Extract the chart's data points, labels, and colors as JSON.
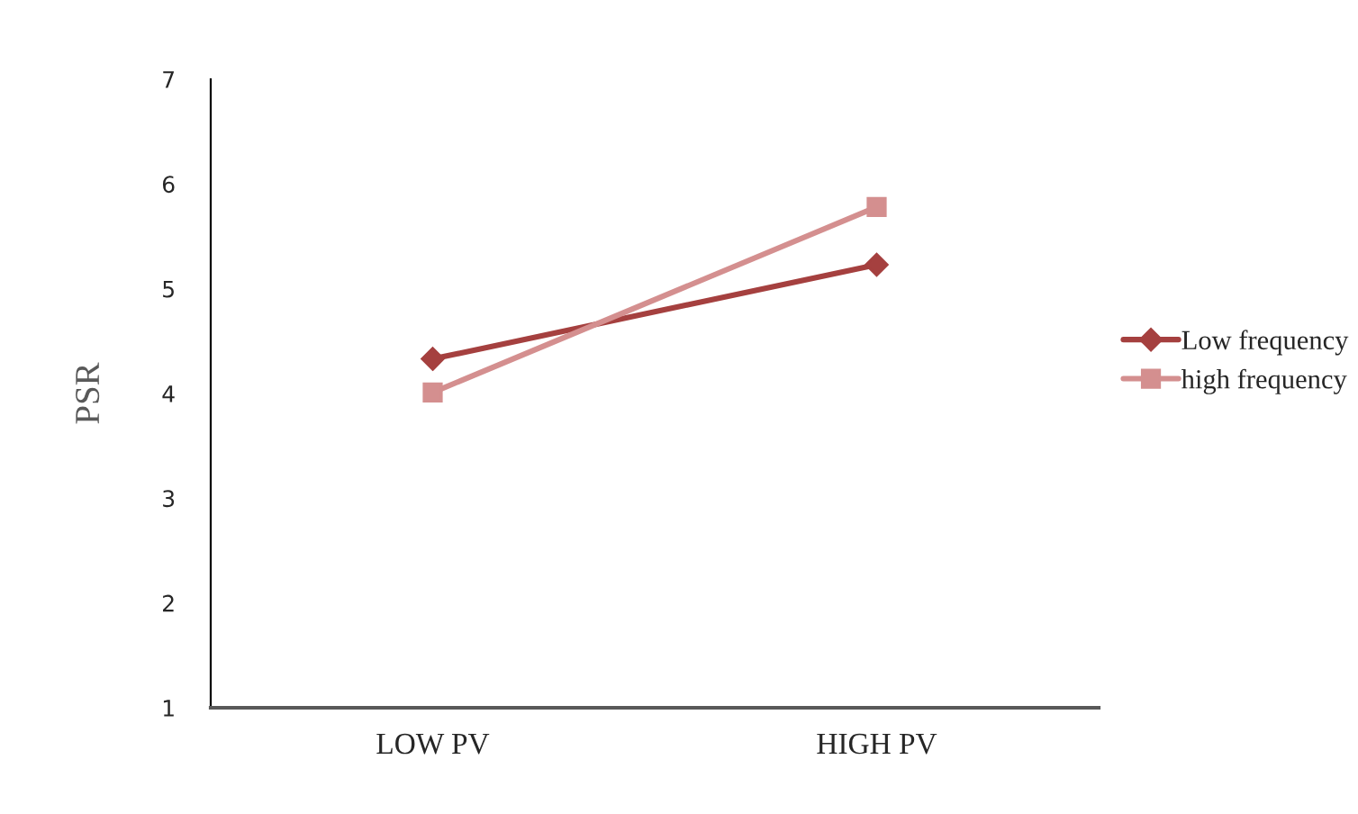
{
  "chart_data": {
    "type": "line",
    "ylabel": "PSR",
    "categories": [
      "LOW PV",
      "HIGH PV"
    ],
    "series": [
      {
        "name": "Low frequency",
        "color": "#a5403f",
        "values": [
          4.33,
          5.23
        ],
        "marker": "diamond"
      },
      {
        "name": "high frequency",
        "color": "#d48f8f",
        "values": [
          4.01,
          5.78
        ],
        "marker": "square"
      }
    ],
    "ylim": [
      1,
      7
    ],
    "yticks": [
      1,
      2,
      3,
      4,
      5,
      6,
      7
    ],
    "grid": false,
    "legend": "right"
  }
}
